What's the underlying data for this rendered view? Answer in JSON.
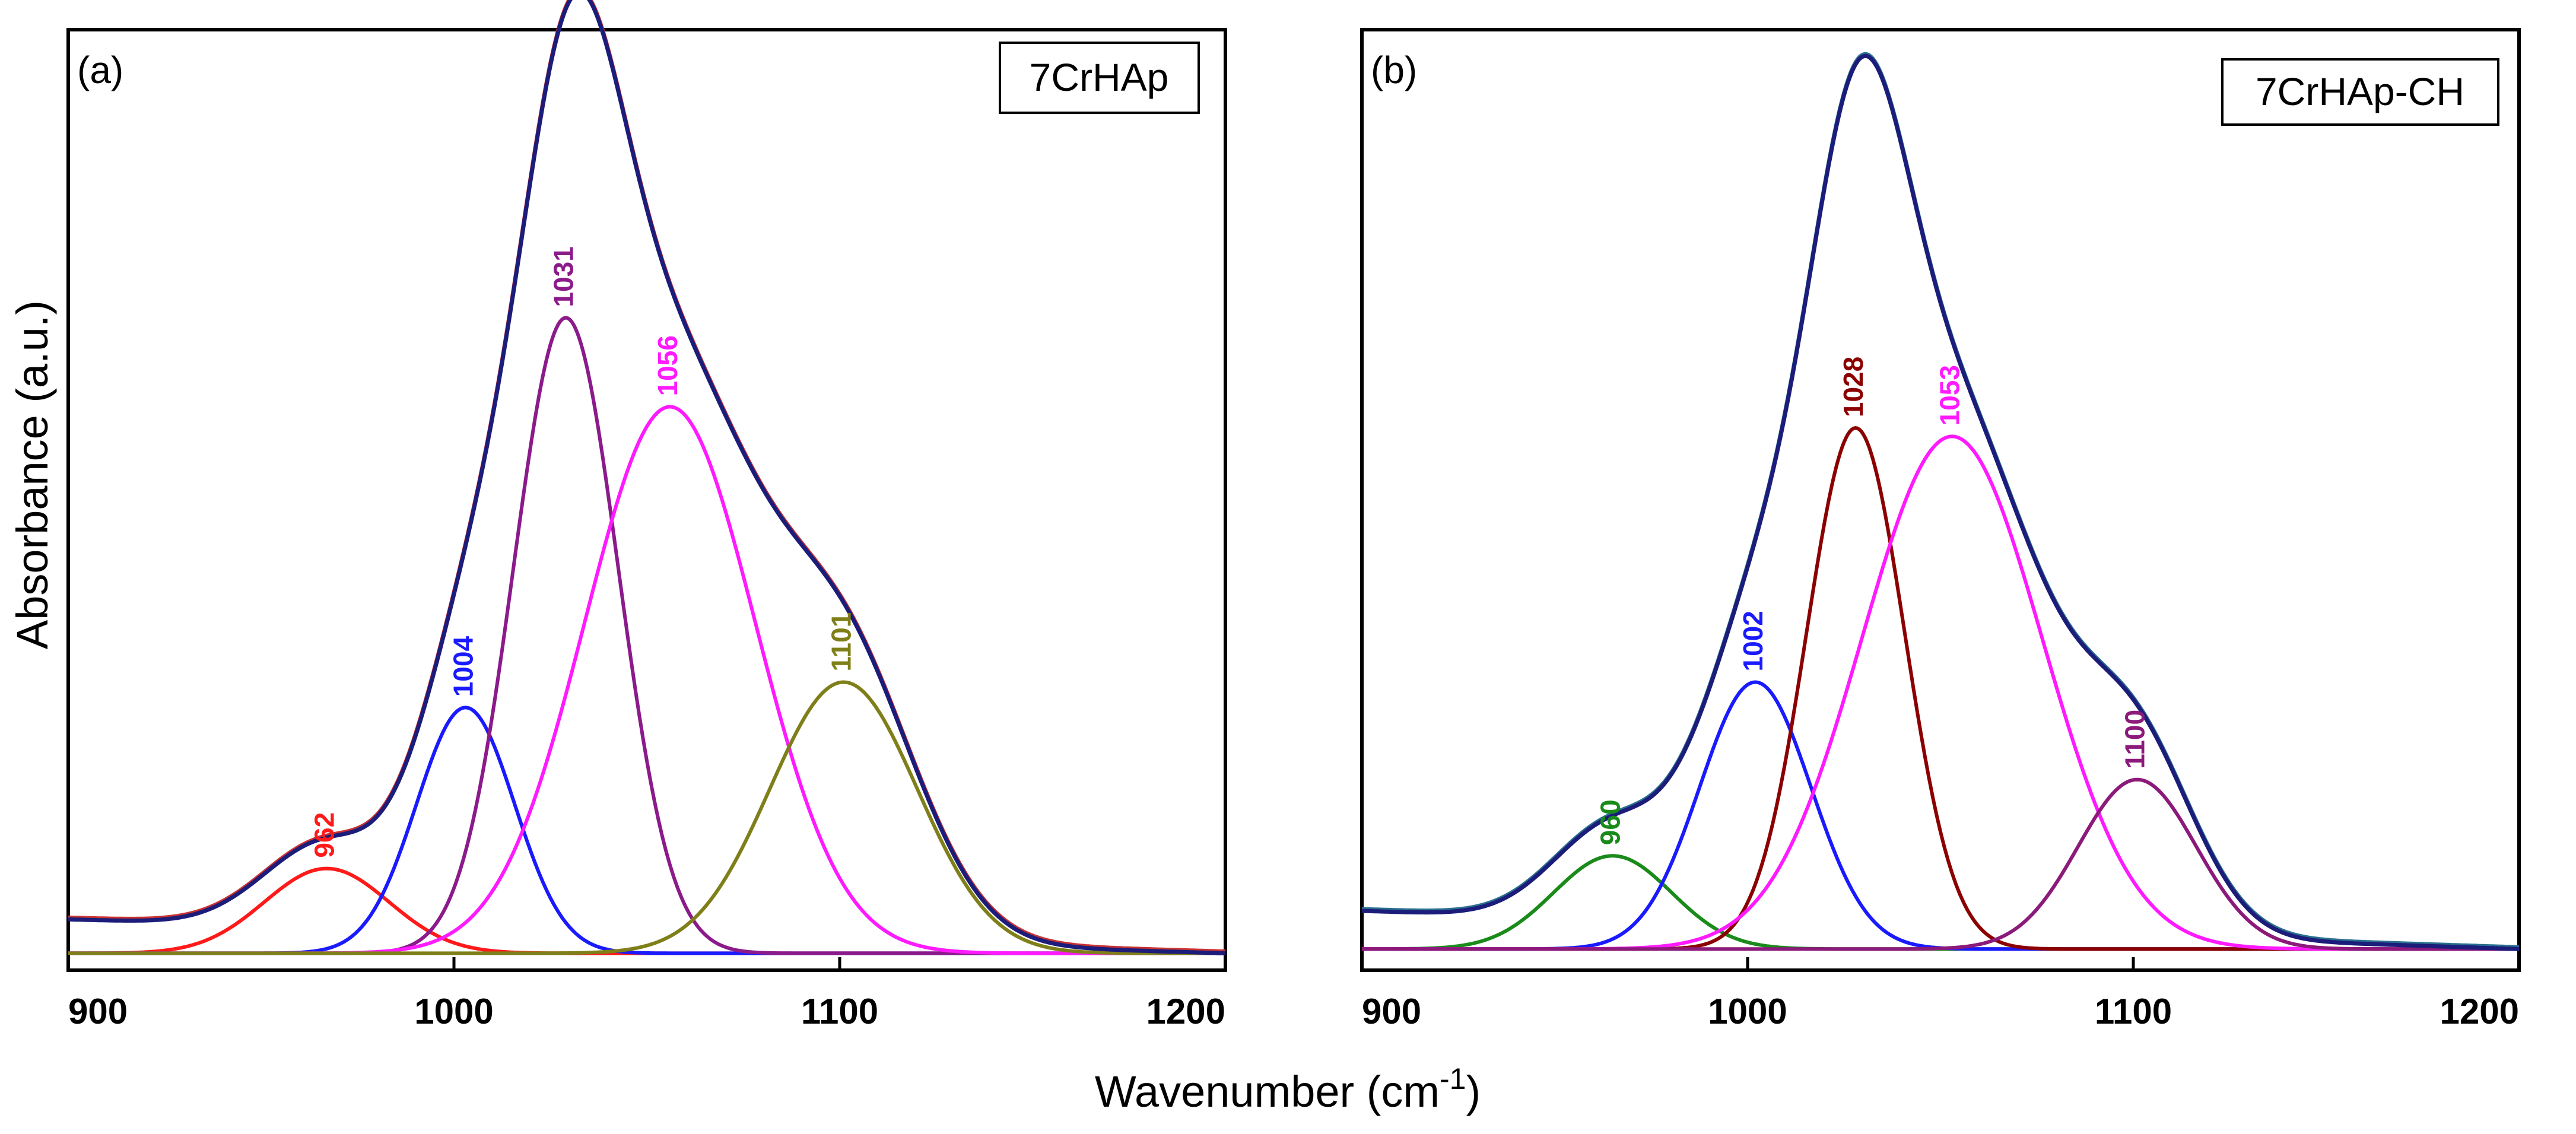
{
  "figure": {
    "ylabel": "Absorbance (a.u.)",
    "xlabel_main": "Wavenumber (cm",
    "xlabel_sup": "-1",
    "xlabel_close": ")"
  },
  "chart_data": [
    {
      "type": "line",
      "panel_label": "(a)",
      "title": "7CrHAp",
      "xlabel": "Wavenumber (cm-1)",
      "ylabel": "Absorbance (a.u.)",
      "xlim": [
        900,
        1200
      ],
      "ylim": [
        0,
        1.11
      ],
      "xticks": [
        900,
        1000,
        1100,
        1200
      ],
      "xtick_labels": [
        "900",
        "1000",
        "1100",
        "1200"
      ],
      "baseline": 0.02,
      "series": [
        {
          "name": "envelope",
          "kind": "envelope",
          "color": "#1c1c7a",
          "shadow": "#c83232",
          "start": 0.06,
          "end": 0.02
        },
        {
          "name": "962",
          "label": "962",
          "center": 967,
          "height": 0.1,
          "fwhm": 38,
          "color": "#ff1a1a"
        },
        {
          "name": "1004",
          "label": "1004",
          "center": 1003,
          "height": 0.29,
          "fwhm": 30,
          "color": "#1a1aff"
        },
        {
          "name": "1031",
          "label": "1031",
          "center": 1029,
          "height": 0.75,
          "fwhm": 32,
          "color": "#8b1a8b"
        },
        {
          "name": "1056",
          "label": "1056",
          "center": 1056,
          "height": 0.645,
          "fwhm": 52,
          "color": "#ff1aff"
        },
        {
          "name": "1101",
          "label": "1101",
          "center": 1101,
          "height": 0.32,
          "fwhm": 45,
          "color": "#7f7f1a"
        }
      ]
    },
    {
      "type": "line",
      "panel_label": "(b)",
      "title": "7CrHAp-CH",
      "xlabel": "Wavenumber (cm-1)",
      "ylabel": "Absorbance (a.u.)",
      "xlim": [
        900,
        1200
      ],
      "ylim": [
        0,
        1.11
      ],
      "xticks": [
        900,
        1000,
        1100,
        1200
      ],
      "xtick_labels": [
        "900",
        "1000",
        "1100",
        "1200"
      ],
      "baseline": 0.025,
      "series": [
        {
          "name": "envelope",
          "kind": "envelope",
          "color": "#1c1c7a",
          "shadow": "#2a6f8f",
          "start": 0.07,
          "end": 0.025
        },
        {
          "name": "960",
          "label": "960",
          "center": 965,
          "height": 0.11,
          "fwhm": 36,
          "color": "#1a8b1a"
        },
        {
          "name": "1002",
          "label": "1002",
          "center": 1002,
          "height": 0.315,
          "fwhm": 34,
          "color": "#1a1aff"
        },
        {
          "name": "1028",
          "label": "1028",
          "center": 1028,
          "height": 0.615,
          "fwhm": 30,
          "color": "#8b0000"
        },
        {
          "name": "1053",
          "label": "1053",
          "center": 1053,
          "height": 0.605,
          "fwhm": 55,
          "color": "#ff1aff"
        },
        {
          "name": "1100",
          "label": "1100",
          "center": 1101,
          "height": 0.2,
          "fwhm": 36,
          "color": "#8b1a7a"
        }
      ]
    }
  ]
}
